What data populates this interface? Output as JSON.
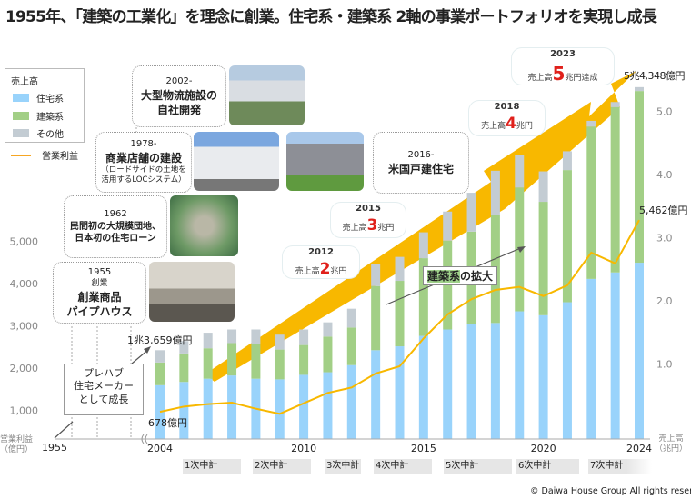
{
  "title": "1955年、「建築の工業化」を理念に創業。住宅系・建築系 2軸の事業ポートフォリオを実現し成長",
  "legend": {
    "header": "売上高",
    "items": [
      {
        "label": "住宅系",
        "color": "#99d3fb"
      },
      {
        "label": "建築系",
        "color": "#a2cf86"
      },
      {
        "label": "その他",
        "color": "#c3ccd3"
      }
    ],
    "line_label": "営業利益",
    "line_color": "#f6a623"
  },
  "milestones": [
    {
      "year": "2002-",
      "title": "大型物流施設の",
      "title2": "自社開発",
      "note": ""
    },
    {
      "year": "1978-",
      "title": "商業店舗の建設",
      "note": "（ロードサイドの土地を",
      "note2": "活用するLOCシステム）"
    },
    {
      "year": "1962",
      "title": "民間初の大規模団地、",
      "title2": "日本初の住宅ローン"
    },
    {
      "year": "1955",
      "sub": "創業",
      "title": "創業商品",
      "title2": "パイプハウス"
    },
    {
      "year": "2016-",
      "title": "米国戸建住宅"
    }
  ],
  "sales_callouts": [
    {
      "year": "2012",
      "prefix": "売上高",
      "num": "2",
      "suffix": "兆円"
    },
    {
      "year": "2015",
      "prefix": "売上高",
      "num": "3",
      "suffix": "兆円"
    },
    {
      "year": "2018",
      "prefix": "売上高",
      "num": "4",
      "suffix": "兆円"
    },
    {
      "year": "2023",
      "prefix": "売上高",
      "num": "5",
      "suffix": "兆円達成"
    }
  ],
  "annotations": {
    "sales_2004": "1兆3,659億円",
    "profit_2004": "678億円",
    "sales_2024": "5兆4,348億円",
    "profit_2024": "5,462億円",
    "expansion_hl": "建築系",
    "expansion_rest": "の拡大",
    "prefab_1": "プレハブ",
    "prefab_2": "住宅メーカー",
    "prefab_3": "として成長"
  },
  "axes": {
    "left_title": "営業利益",
    "left_unit": "（億円）",
    "right_title": "売上高",
    "right_unit": "（兆円）",
    "start_year": "1955"
  },
  "mid_term_plans": [
    "1次中計",
    "2次中計",
    "3次中計",
    "4次中計",
    "5次中計",
    "6次中計",
    "7次中計"
  ],
  "copyright": "© Daiwa House Group All rights reserved.",
  "chart_data": {
    "type": "bar",
    "stacked": true,
    "x": [
      2004,
      2005,
      2006,
      2007,
      2008,
      2009,
      2010,
      2011,
      2012,
      2013,
      2014,
      2015,
      2016,
      2017,
      2018,
      2019,
      2020,
      2021,
      2022,
      2023,
      2024
    ],
    "x_tick_labels": [
      "2004",
      "2010",
      "2015",
      "2020",
      "2024"
    ],
    "series": [
      {
        "name": "住宅系",
        "axis": "right",
        "values": [
          0.83,
          0.88,
          0.93,
          0.98,
          0.93,
          0.92,
          0.99,
          1.03,
          1.14,
          1.37,
          1.43,
          1.59,
          1.69,
          1.77,
          1.79,
          1.97,
          1.91,
          2.11,
          2.47,
          2.57,
          2.72
        ]
      },
      {
        "name": "建築系",
        "axis": "right",
        "values": [
          0.35,
          0.44,
          0.47,
          0.5,
          0.53,
          0.46,
          0.46,
          0.55,
          0.58,
          0.99,
          1.01,
          1.2,
          1.37,
          1.43,
          1.67,
          1.91,
          1.75,
          2.04,
          2.35,
          2.55,
          2.65
        ]
      },
      {
        "name": "その他",
        "axis": "right",
        "values": [
          0.19,
          0.19,
          0.24,
          0.21,
          0.23,
          0.23,
          0.24,
          0.22,
          0.29,
          0.34,
          0.37,
          0.4,
          0.45,
          0.6,
          0.68,
          0.5,
          0.47,
          0.29,
          0.09,
          0.08,
          0.06
        ]
      },
      {
        "name": "営業利益",
        "type": "line",
        "axis": "left",
        "values": [
          678,
          809,
          870,
          907,
          756,
          627,
          891,
          1149,
          1285,
          1635,
          1814,
          2509,
          3108,
          3489,
          3719,
          3794,
          3566,
          3833,
          4648,
          4380,
          5462
        ]
      }
    ],
    "left_axis": {
      "ticks": [
        "1,000",
        "2,000",
        "3,000",
        "4,000",
        "5,000"
      ],
      "values": [
        1000,
        2000,
        3000,
        4000,
        5000
      ]
    },
    "right_axis": {
      "ticks": [
        "1.0",
        "2.0",
        "3.0",
        "4.0",
        "5.0"
      ],
      "values": [
        1,
        2,
        3,
        4,
        5
      ]
    },
    "grid": false
  }
}
